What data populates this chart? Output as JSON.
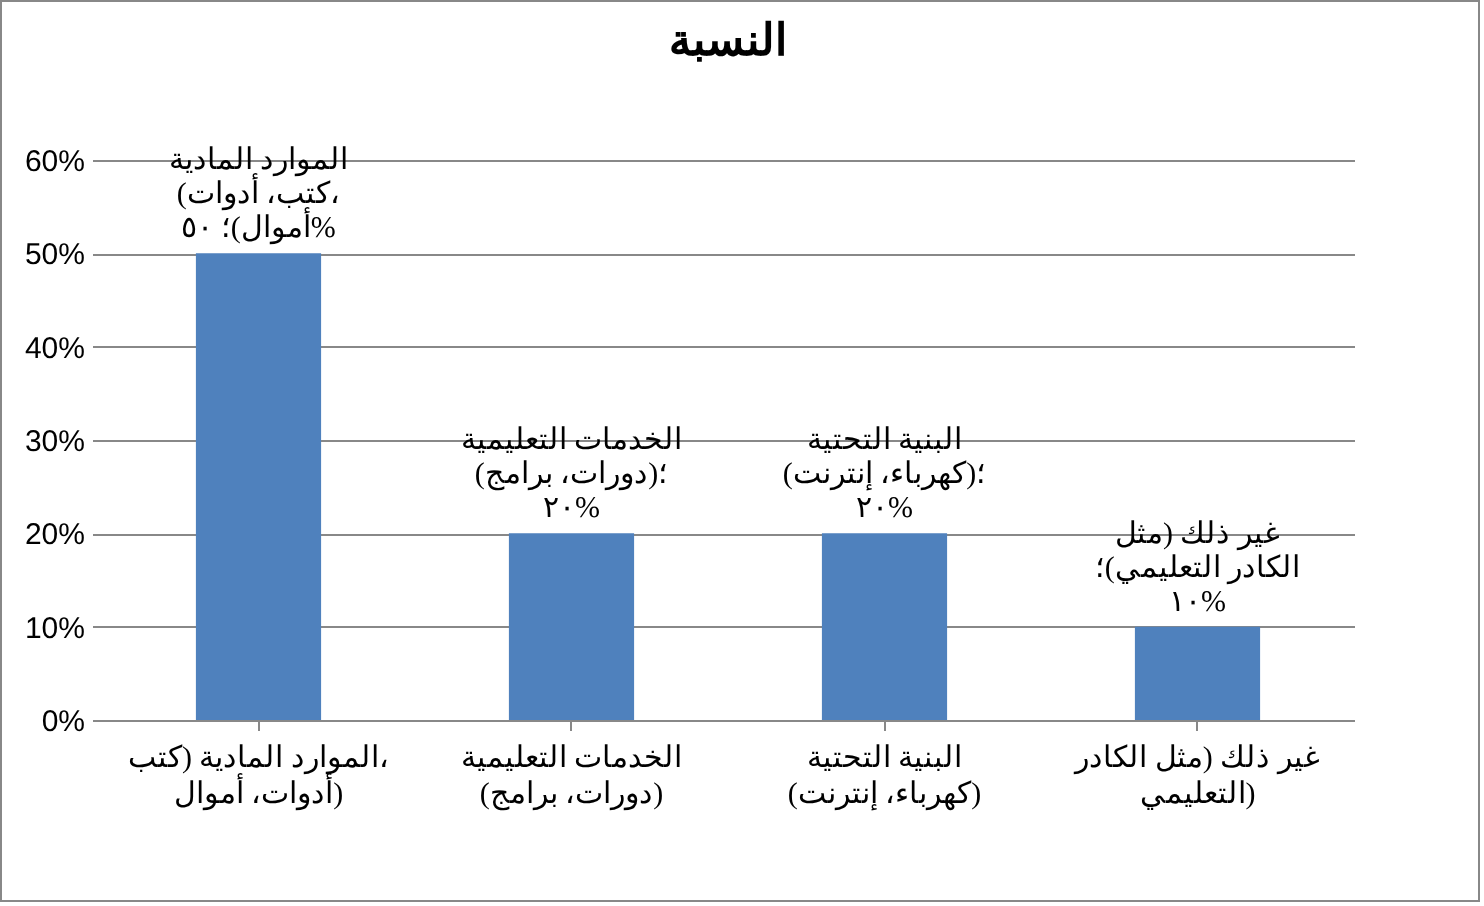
{
  "chart_data": {
    "type": "bar",
    "title": "النسبة",
    "categories": [
      "الموارد المادية (كتب، أدوات، أموال)",
      "الخدمات التعليمية (دورات، برامج)",
      "البنية التحتية (كهرباء، إنترنت)",
      "غير ذلك (مثل الكادر التعليمي)"
    ],
    "values": [
      50,
      20,
      20,
      10
    ],
    "color": "#4f81bd",
    "value_labels": [
      "الموارد المادية (كتب، أدوات، أموال)؛ ٥٠%",
      "الخدمات التعليمية (دورات، برامج)؛ ٢٠%",
      "البنية التحتية (كهرباء، إنترنت)؛ ٢٠%",
      "غير ذلك (مثل الكادر التعليمي)؛ ١٠%"
    ],
    "ylim": [
      0,
      60
    ],
    "yticks": [
      {
        "value": 0,
        "label": "0%"
      },
      {
        "value": 10,
        "label": "10%"
      },
      {
        "value": 20,
        "label": "20%"
      },
      {
        "value": 30,
        "label": "30%"
      },
      {
        "value": 40,
        "label": "40%"
      },
      {
        "value": 50,
        "label": "50%"
      },
      {
        "value": 60,
        "label": "60%"
      }
    ],
    "grid": "y",
    "legend": false
  }
}
